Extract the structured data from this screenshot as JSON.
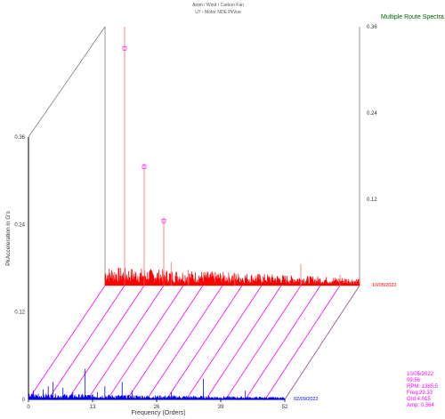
{
  "header": {
    "line1": "Atom / Wind / Carbon Fan",
    "line2": "U7 - Motor NDE PkVue"
  },
  "chart_data": {
    "type": "line",
    "title": "Multiple Route Spectra",
    "xlabel": "Frequency (Orders)",
    "ylabel": "PkAcceleration in G's",
    "xlim": [
      0,
      52
    ],
    "ylim": [
      0,
      0.36
    ],
    "x_ticks": [
      "0",
      "13",
      "26",
      "39",
      "52"
    ],
    "y_ticks_front": [
      "0",
      "0.12",
      "0.24",
      "0.36"
    ],
    "y_ticks_back": [
      "0.12",
      "0.24",
      "0.36"
    ],
    "series": [
      {
        "name": "02/09/2022",
        "color": "#0000ff",
        "noise_floor": 0.007,
        "peaks": [
          {
            "x": 1.0,
            "y": 0.012
          },
          {
            "x": 2.0,
            "y": 0.008
          },
          {
            "x": 3.0,
            "y": 0.014
          },
          {
            "x": 4.0,
            "y": 0.018
          },
          {
            "x": 5.0,
            "y": 0.024
          },
          {
            "x": 7.0,
            "y": 0.016
          },
          {
            "x": 9.0,
            "y": 0.01
          },
          {
            "x": 11.5,
            "y": 0.042
          },
          {
            "x": 14.0,
            "y": 0.01
          },
          {
            "x": 15.5,
            "y": 0.018
          },
          {
            "x": 19.0,
            "y": 0.024
          },
          {
            "x": 21.0,
            "y": 0.012
          },
          {
            "x": 29.0,
            "y": 0.01
          },
          {
            "x": 35.5,
            "y": 0.028
          },
          {
            "x": 44.0,
            "y": 0.012
          }
        ]
      },
      {
        "name": "10/05/2022",
        "color": "#ff0000",
        "noise_floor": 0.022,
        "peaks": [
          {
            "x": 4.0,
            "y": 0.36
          },
          {
            "x": 8.0,
            "y": 0.17
          },
          {
            "x": 12.0,
            "y": 0.095
          },
          {
            "x": 13.5,
            "y": 0.033
          },
          {
            "x": 17.0,
            "y": 0.022
          },
          {
            "x": 26.5,
            "y": 0.018
          },
          {
            "x": 40.0,
            "y": 0.03
          },
          {
            "x": 48.0,
            "y": 0.015
          }
        ],
        "markers": [
          {
            "x": 4.0,
            "y": 0.33
          },
          {
            "x": 8.0,
            "y": 0.165
          },
          {
            "x": 12.0,
            "y": 0.09
          }
        ]
      }
    ],
    "grid": false,
    "legend": "dates at right end of each trace"
  },
  "cursor_info": {
    "date": "10/05/2022",
    "time": "09:56",
    "rpm": "RPM: 1385.5",
    "freq": "Freq:29.33",
    "ord": "Ord:4.015",
    "amp": "Amp: 0.364"
  },
  "colors": {
    "axis": "#000000",
    "back_axis": "#808080",
    "perspective_lines": "#ff00ff",
    "title": "#006600",
    "info_text": "#ff00ff"
  }
}
